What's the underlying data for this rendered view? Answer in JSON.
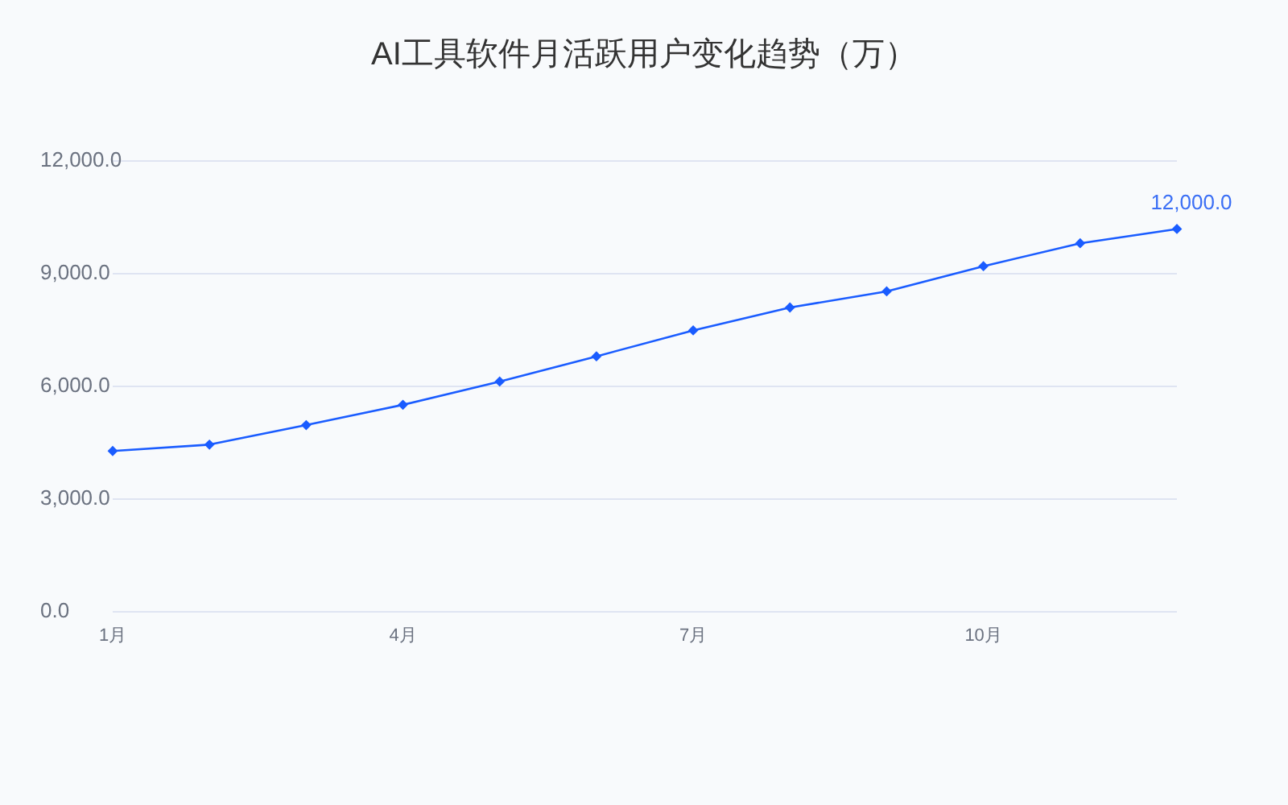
{
  "chart_data": {
    "type": "line",
    "title": "AI工具软件月活跃用户变化趋势（万）",
    "x": [
      1,
      2,
      3,
      4,
      5,
      6,
      7,
      8,
      9,
      10,
      11,
      12
    ],
    "xlim": [
      1,
      12
    ],
    "xticks": [
      {
        "value": 1,
        "label": "1月"
      },
      {
        "value": 4,
        "label": "4月"
      },
      {
        "value": 7,
        "label": "7月"
      },
      {
        "value": 10,
        "label": "10月"
      }
    ],
    "ylim": [
      0,
      12000
    ],
    "yticks": [
      {
        "value": 0,
        "label": "0.0"
      },
      {
        "value": 3000,
        "label": "3,000.0"
      },
      {
        "value": 6000,
        "label": "6,000.0"
      },
      {
        "value": 9000,
        "label": "9,000.0"
      },
      {
        "value": 12000,
        "label": "12,000.0"
      }
    ],
    "series": [
      {
        "color": "#1a5cff",
        "values": [
          4280,
          4450,
          4970,
          5510,
          6130,
          6800,
          7490,
          8100,
          8530,
          9200,
          9810,
          10190
        ]
      }
    ],
    "marker": "diamond",
    "line_style": "solid",
    "grid": "y",
    "annotations": [
      {
        "text": "12,000.0",
        "x": 12,
        "y": 10190
      }
    ]
  }
}
